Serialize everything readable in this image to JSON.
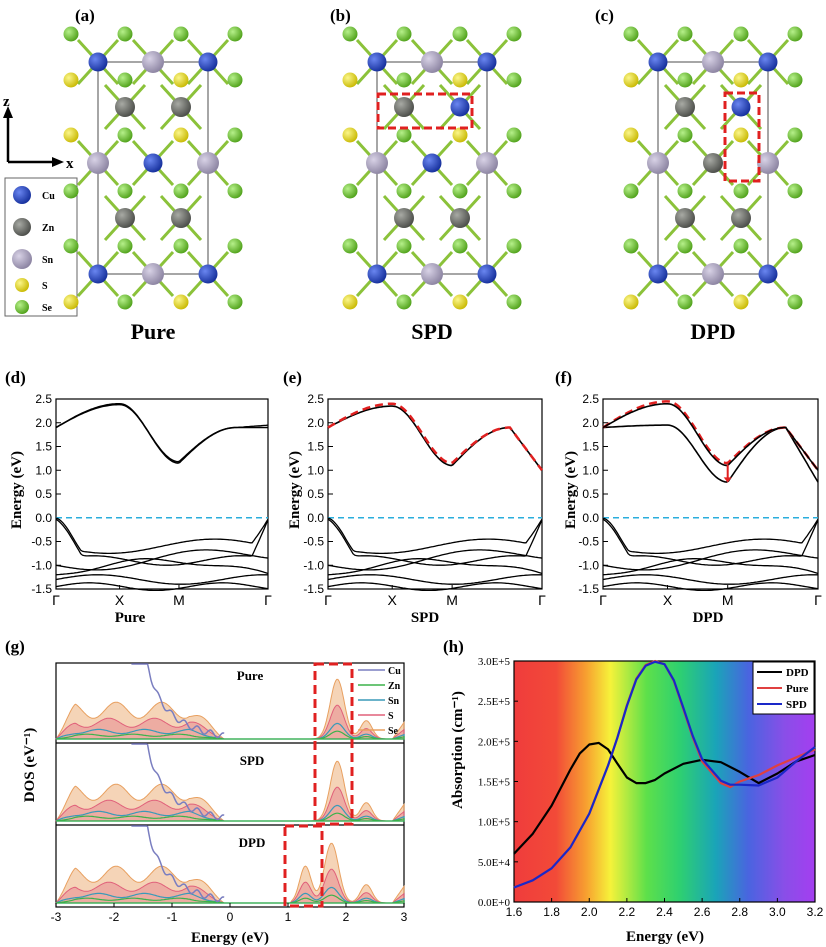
{
  "panel_labels": [
    "(a)",
    "(b)",
    "(c)",
    "(d)",
    "(e)",
    "(f)",
    "(g)",
    "(h)"
  ],
  "axes_indicator": {
    "vertical": "z",
    "horizontal": "x"
  },
  "legend_a": {
    "items": [
      {
        "label": "Cu",
        "color": "#1f3fbf"
      },
      {
        "label": "Zn",
        "color": "#6e706a"
      },
      {
        "label": "Sn",
        "color": "#a49cb8"
      },
      {
        "label": "S",
        "color": "#e6d810"
      },
      {
        "label": "Se",
        "color": "#6cc22a"
      }
    ]
  },
  "structure_captions": [
    "Pure",
    "SPD",
    "DPD"
  ],
  "band": {
    "ylabel": "Energy (eV)",
    "yticks": [
      "2.5",
      "2.0",
      "1.5",
      "1.0",
      "0.5",
      "0.0",
      "-0.5",
      "-1.0",
      "-1.5"
    ],
    "kpoints": [
      "Γ",
      "X",
      "M",
      "Γ"
    ],
    "captions": [
      "Pure",
      "SPD",
      "DPD"
    ]
  },
  "dos": {
    "ylabel": "DOS (eV⁻¹)",
    "xlabel": "Energy (eV)",
    "xticks": [
      "-3",
      "-2",
      "-1",
      "0",
      "1",
      "2",
      "3"
    ],
    "panel_titles": [
      "Pure",
      "SPD",
      "DPD"
    ],
    "legend": [
      {
        "label": "Cu",
        "color": "#7a7ec0"
      },
      {
        "label": "Zn",
        "color": "#3bb24a"
      },
      {
        "label": "Sn",
        "color": "#3a9ab8"
      },
      {
        "label": "S",
        "color": "#e0607a"
      },
      {
        "label": "Se",
        "color": "#e8a060"
      }
    ]
  },
  "chart_data": {
    "type": "line",
    "title": "",
    "xlabel": "Energy (eV)",
    "ylabel": "Absorption (cm⁻¹)",
    "xlim": [
      1.6,
      3.2
    ],
    "ylim": [
      0,
      300000
    ],
    "xticks": [
      "1.6",
      "1.8",
      "2.0",
      "2.2",
      "2.4",
      "2.6",
      "2.8",
      "3.0",
      "3.2"
    ],
    "yticks": [
      "0.0E+0",
      "5.0E+4",
      "1.0E+5",
      "1.5E+5",
      "2.0E+5",
      "2.5E+5",
      "3.0E+5"
    ],
    "legend_position": "top-right",
    "series": [
      {
        "name": "DPD",
        "color": "#000000",
        "x": [
          1.6,
          1.7,
          1.8,
          1.9,
          1.95,
          2.0,
          2.05,
          2.1,
          2.15,
          2.2,
          2.25,
          2.3,
          2.35,
          2.4,
          2.5,
          2.6,
          2.7,
          2.8,
          2.9,
          3.0,
          3.1,
          3.2
        ],
        "y": [
          60000,
          85000,
          120000,
          165000,
          185000,
          196000,
          198000,
          190000,
          172000,
          155000,
          148000,
          148000,
          152000,
          160000,
          172000,
          177000,
          174000,
          162000,
          148000,
          160000,
          175000,
          183000
        ]
      },
      {
        "name": "Pure",
        "color": "#e04040",
        "x": [
          1.6,
          1.7,
          1.8,
          1.9,
          2.0,
          2.1,
          2.15,
          2.2,
          2.25,
          2.3,
          2.35,
          2.4,
          2.45,
          2.5,
          2.55,
          2.6,
          2.7,
          2.75,
          2.8,
          2.9,
          3.0,
          3.1,
          3.2
        ],
        "y": [
          18000,
          27000,
          42000,
          68000,
          110000,
          170000,
          205000,
          245000,
          278000,
          295000,
          300000,
          296000,
          275000,
          240000,
          205000,
          175000,
          148000,
          143000,
          150000,
          158000,
          170000,
          180000,
          190000
        ]
      },
      {
        "name": "SPD",
        "color": "#1a28c8",
        "x": [
          1.6,
          1.7,
          1.8,
          1.9,
          2.0,
          2.1,
          2.15,
          2.2,
          2.25,
          2.3,
          2.35,
          2.4,
          2.45,
          2.5,
          2.55,
          2.6,
          2.7,
          2.75,
          2.8,
          2.9,
          3.0,
          3.1,
          3.2
        ],
        "y": [
          18000,
          27000,
          42000,
          68000,
          110000,
          170000,
          205000,
          244000,
          277000,
          294000,
          299000,
          296000,
          276000,
          242000,
          207000,
          178000,
          151000,
          146000,
          146000,
          145000,
          155000,
          175000,
          193000
        ]
      }
    ]
  }
}
